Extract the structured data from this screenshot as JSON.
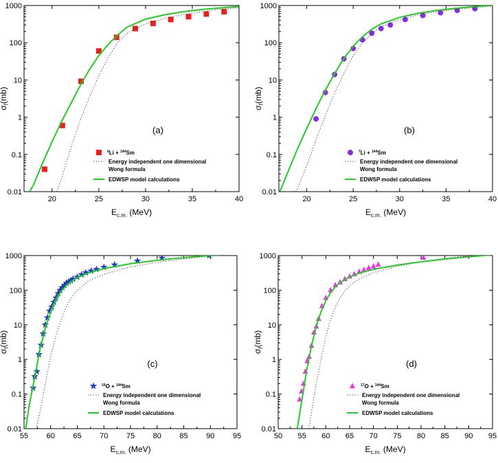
{
  "chart_data": [
    {
      "type": "scatter",
      "panel": "(a)",
      "x_label": "E",
      "x_label_sub": "c.m.",
      "x_label_unit": " (MeV)",
      "y_label": "σ",
      "y_label_sub": "f",
      "y_label_unit": "(mb)",
      "xlim": [
        17,
        40
      ],
      "ylim": [
        0.01,
        1000
      ],
      "y_scale": "log",
      "x_ticks": [
        20,
        25,
        30,
        35,
        40
      ],
      "x_tick_labels": [
        "20",
        "25",
        "30",
        "35",
        "40"
      ],
      "y_ticks": [
        0.01,
        0.1,
        1,
        10,
        100,
        1000
      ],
      "y_tick_labels": [
        "0.01",
        "0.1",
        "1",
        "10",
        "100",
        "1000"
      ],
      "legend_position": "bottom-right",
      "series": [
        {
          "name": "⁶Li + ¹⁴⁴Sm",
          "name_prefix": "6",
          "name_mid": "Li + ",
          "name_sup": "144",
          "name_suffix": "Sm",
          "kind": "points",
          "marker": "square",
          "color": "#e8201e",
          "x": [
            19.2,
            21.1,
            23.1,
            25.0,
            26.9,
            28.9,
            30.8,
            32.7,
            34.6,
            36.5,
            38.4
          ],
          "y": [
            0.04,
            0.6,
            9.2,
            60,
            140,
            240,
            330,
            420,
            500,
            590,
            680
          ]
        },
        {
          "name": "Energy independent one dimensional",
          "name2": "Wong formula",
          "kind": "line",
          "style": "dotted",
          "color": "#333333",
          "x": [
            20.5,
            21,
            22,
            23,
            24,
            25,
            26,
            27,
            28,
            30,
            32,
            34,
            36,
            38,
            40
          ],
          "y": [
            0.01,
            0.022,
            0.15,
            0.8,
            3.5,
            13,
            40,
            100,
            180,
            320,
            450,
            570,
            680,
            790,
            880
          ]
        },
        {
          "name": "EDWSP model calculations",
          "kind": "line",
          "style": "solid",
          "color": "#22cc22",
          "x": [
            17.6,
            18,
            19,
            20,
            21,
            22,
            23,
            24,
            25,
            26,
            27,
            28,
            30,
            32,
            34,
            36,
            38,
            40
          ],
          "y": [
            0.01,
            0.015,
            0.06,
            0.22,
            0.75,
            2.3,
            7,
            19,
            45,
            90,
            160,
            260,
            430,
            560,
            680,
            780,
            860,
            940
          ]
        }
      ]
    },
    {
      "type": "scatter",
      "panel": "(b)",
      "x_label": "E",
      "x_label_sub": "c.m.",
      "x_label_unit": " (MeV)",
      "y_label": "σ",
      "y_label_sub": "f",
      "y_label_unit": "(mb)",
      "xlim": [
        17,
        40
      ],
      "ylim": [
        0.01,
        1000
      ],
      "y_scale": "log",
      "x_ticks": [
        20,
        25,
        30,
        35,
        40
      ],
      "x_tick_labels": [
        "20",
        "25",
        "30",
        "35",
        "40"
      ],
      "y_ticks": [
        0.01,
        0.1,
        1,
        10,
        100,
        1000
      ],
      "y_tick_labels": [
        "0.01",
        "0.1",
        "1",
        "10",
        "100",
        "1000"
      ],
      "legend_position": "bottom-right",
      "series": [
        {
          "name": "⁷Li + ¹⁴⁴Sm",
          "name_prefix": "7",
          "name_mid": "Li + ",
          "name_sup": "144",
          "name_suffix": "Sm",
          "kind": "points",
          "marker": "circle",
          "color": "#8a2be2",
          "x": [
            21.0,
            22.0,
            23.0,
            24.0,
            25.0,
            26.0,
            27.0,
            28.0,
            29.0,
            30.6,
            32.5,
            34.4,
            36.2,
            38.1
          ],
          "y": [
            0.9,
            4.6,
            14,
            37,
            70,
            120,
            180,
            240,
            300,
            420,
            540,
            640,
            740,
            820
          ]
        },
        {
          "name": "Energy independent one dimensional",
          "name2": "Wong formula",
          "kind": "line",
          "style": "dotted",
          "color": "#333333",
          "x": [
            18.8,
            19,
            20,
            21,
            22,
            23,
            24,
            25,
            26,
            27,
            28,
            30,
            32,
            34,
            36,
            38,
            40
          ],
          "y": [
            0.01,
            0.012,
            0.05,
            0.25,
            1.1,
            4.5,
            15,
            45,
            100,
            180,
            270,
            420,
            560,
            680,
            790,
            880,
            960
          ]
        },
        {
          "name": "EDWSP model calculations",
          "kind": "line",
          "style": "solid",
          "color": "#22cc22",
          "x": [
            17.1,
            18,
            19,
            20,
            21,
            22,
            23,
            24,
            25,
            26,
            27,
            28,
            30,
            32,
            34,
            36,
            38,
            40
          ],
          "y": [
            0.01,
            0.035,
            0.14,
            0.5,
            1.7,
            5.3,
            15,
            38,
            80,
            145,
            230,
            320,
            480,
            620,
            740,
            840,
            930,
            1010
          ]
        }
      ]
    },
    {
      "type": "scatter",
      "panel": "(c)",
      "x_label": "E",
      "x_label_sub": "c.m.",
      "x_label_unit": " (MeV)",
      "y_label": "σ",
      "y_label_sub": "f",
      "y_label_unit": "(mb)",
      "xlim": [
        55,
        95
      ],
      "ylim": [
        0.01,
        1000
      ],
      "y_scale": "log",
      "x_ticks": [
        55,
        60,
        65,
        70,
        75,
        80,
        85,
        90,
        95
      ],
      "x_tick_labels": [
        "55",
        "60",
        "65",
        "70",
        "75",
        "80",
        "85",
        "90",
        "95"
      ],
      "y_ticks": [
        0.01,
        0.1,
        1,
        10,
        100,
        1000
      ],
      "y_tick_labels": [
        "0.01",
        "0.1",
        "1",
        "10",
        "100",
        "1000"
      ],
      "legend_position": "bottom-right",
      "series": [
        {
          "name": "¹⁶O + ¹⁴⁴Sm",
          "name_prefix": "16",
          "name_mid": "O + ",
          "name_sup": "144",
          "name_suffix": "Sm",
          "kind": "points",
          "marker": "star",
          "color": "#1f3fd0",
          "x": [
            56.7,
            57.0,
            57.4,
            57.8,
            58.2,
            58.6,
            59.0,
            59.4,
            59.8,
            60.2,
            60.6,
            61.0,
            61.4,
            61.8,
            62.2,
            62.6,
            63.0,
            63.4,
            63.8,
            64.2,
            65.0,
            65.8,
            66.6,
            67.6,
            68.6,
            70.0,
            72.0,
            76.3,
            80.9,
            89.8
          ],
          "y": [
            0.15,
            0.32,
            0.45,
            1.4,
            2.6,
            5.5,
            10,
            16,
            25,
            33,
            45,
            60,
            80,
            100,
            120,
            140,
            160,
            175,
            190,
            210,
            240,
            280,
            320,
            360,
            400,
            460,
            540,
            700,
            850,
            1000
          ]
        },
        {
          "name": "Energy independent one dimensional",
          "name2": "Wong formula",
          "kind": "line",
          "style": "dotted",
          "color": "#333333",
          "x": [
            57.3,
            58,
            59,
            60,
            61,
            62,
            63,
            64,
            65,
            67,
            70,
            75,
            80,
            85,
            90,
            95
          ],
          "y": [
            0.01,
            0.03,
            0.2,
            1.2,
            5,
            15,
            35,
            65,
            100,
            180,
            290,
            470,
            640,
            800,
            960,
            1100
          ]
        },
        {
          "name": "EDWSP model calculations",
          "kind": "line",
          "style": "solid",
          "color": "#22cc22",
          "x": [
            55.3,
            56,
            57,
            58,
            59,
            60,
            61,
            62,
            63,
            64,
            65,
            67,
            70,
            75,
            80,
            85,
            90,
            95
          ],
          "y": [
            0.01,
            0.05,
            0.3,
            2,
            8,
            24,
            55,
            95,
            140,
            185,
            230,
            310,
            420,
            580,
            730,
            870,
            1000,
            1130
          ]
        }
      ]
    },
    {
      "type": "scatter",
      "panel": "(d)",
      "x_label": "E",
      "x_label_sub": "c.m.",
      "x_label_unit": " (MeV)",
      "y_label": "σ",
      "y_label_sub": "f",
      "y_label_unit": "(mb)",
      "xlim": [
        50,
        95
      ],
      "ylim": [
        0.01,
        1000
      ],
      "y_scale": "log",
      "x_ticks": [
        50,
        55,
        60,
        65,
        70,
        75,
        80,
        85,
        90,
        95
      ],
      "x_tick_labels": [
        "50",
        "55",
        "60",
        "65",
        "70",
        "75",
        "80",
        "85",
        "90",
        "95"
      ],
      "y_ticks": [
        0.01,
        0.1,
        1,
        10,
        100,
        1000
      ],
      "y_tick_labels": [
        "0.01",
        "0.1",
        "1",
        "10",
        "100",
        "1000"
      ],
      "legend_position": "bottom-right",
      "series": [
        {
          "name": "¹⁷O + ¹⁴⁴Sm",
          "name_prefix": "17",
          "name_mid": "O + ",
          "name_sup": "144",
          "name_suffix": "Sm",
          "kind": "points",
          "marker": "triangle",
          "color": "#ee33ee",
          "x": [
            54.5,
            54.9,
            55.3,
            55.7,
            56.1,
            56.5,
            57.0,
            57.5,
            58.0,
            58.5,
            59.2,
            60.0,
            61.0,
            62.0,
            63.0,
            64.0,
            65.0,
            66.0,
            67.0,
            68.0,
            69.0,
            70.0,
            71.0,
            80.5,
            89.3
          ],
          "y": [
            0.07,
            0.12,
            0.2,
            0.45,
            0.9,
            1.2,
            2.5,
            6,
            9,
            15,
            35,
            60,
            100,
            140,
            170,
            210,
            250,
            290,
            340,
            390,
            440,
            490,
            550,
            870,
            1050
          ]
        },
        {
          "name": "Energy independent one dimensional",
          "name2": "Wong formula",
          "kind": "line",
          "style": "dotted",
          "color": "#333333",
          "x": [
            56.4,
            57,
            58,
            59,
            60,
            61,
            62,
            63,
            64,
            65,
            67,
            70,
            75,
            80,
            85,
            90,
            95
          ],
          "y": [
            0.01,
            0.03,
            0.2,
            1,
            4.5,
            14,
            33,
            60,
            95,
            135,
            210,
            320,
            490,
            660,
            830,
            990,
            1150
          ]
        },
        {
          "name": "EDWSP model calculations",
          "kind": "line",
          "style": "solid",
          "color": "#22cc22",
          "x": [
            54.0,
            55,
            56,
            57,
            58,
            59,
            60,
            61,
            62,
            63,
            64,
            65,
            67,
            70,
            75,
            80,
            85,
            90,
            95
          ],
          "y": [
            0.01,
            0.07,
            0.5,
            2.5,
            9,
            24,
            50,
            85,
            125,
            165,
            200,
            240,
            310,
            400,
            530,
            660,
            790,
            920,
            1050
          ]
        }
      ]
    }
  ]
}
